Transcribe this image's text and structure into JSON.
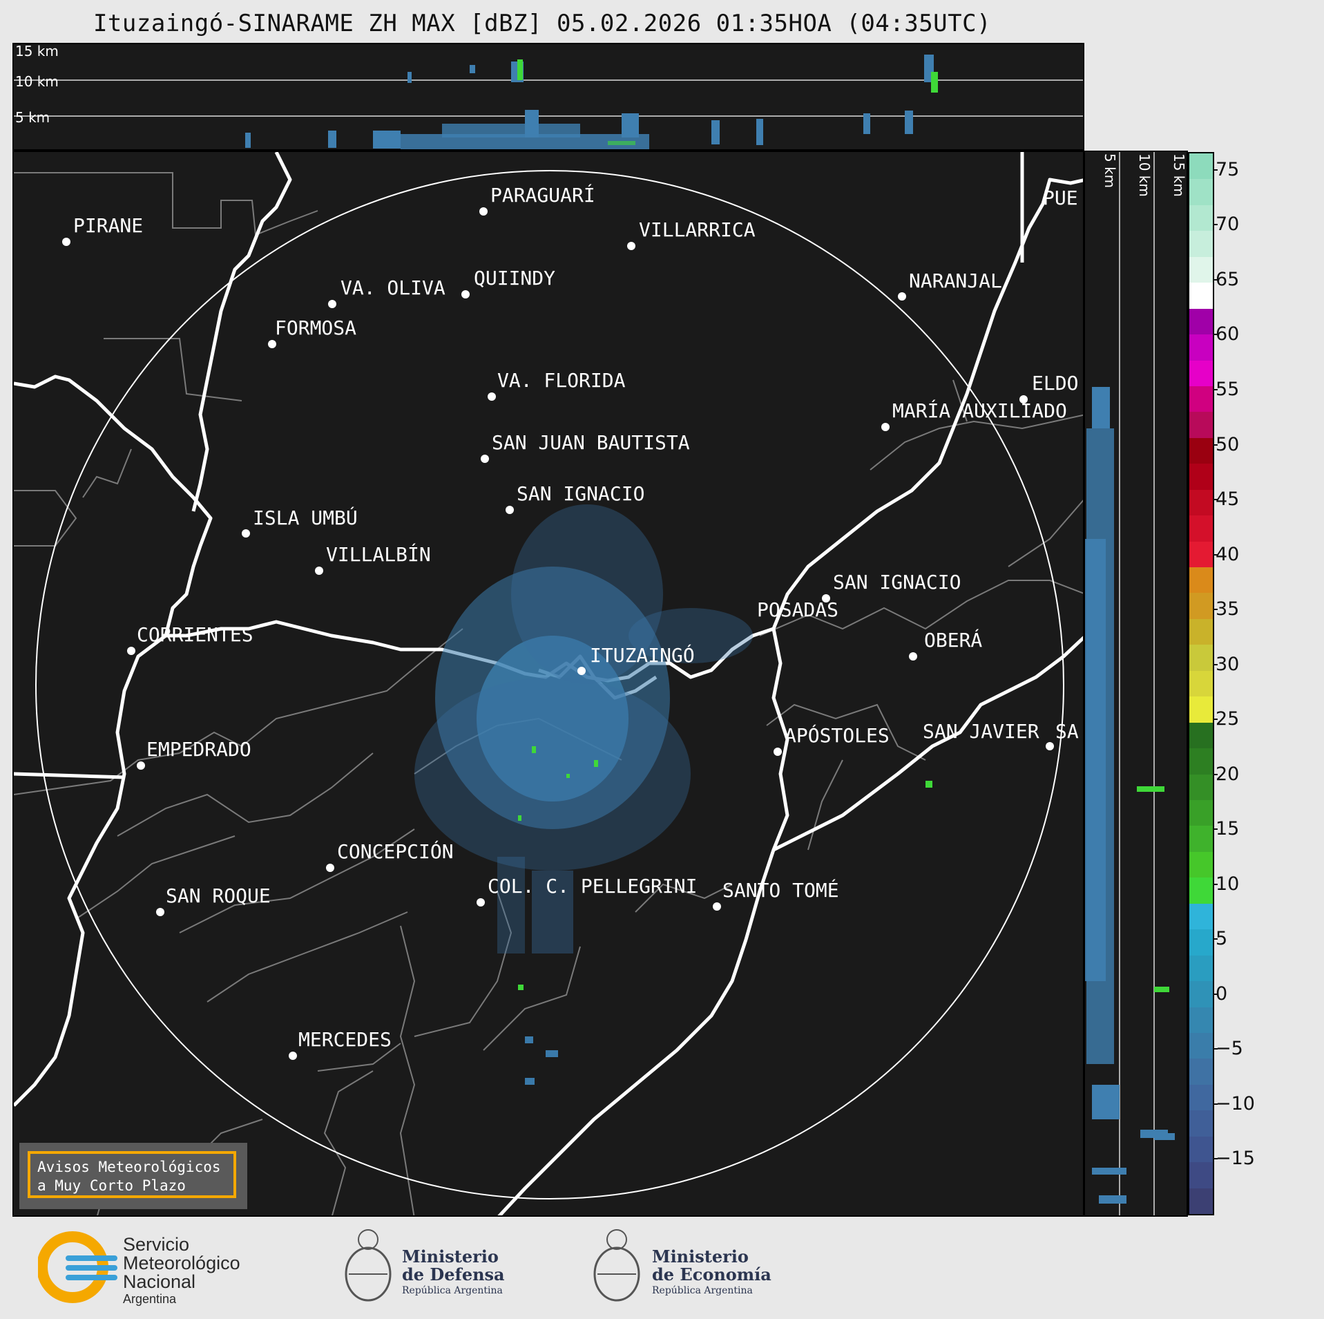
{
  "title": "Ituzaingó-SINARAME ZH MAX [dBZ] 05.02.2026 01:35HOA (04:35UTC)",
  "top_panel": {
    "labels": [
      "15 km",
      "10 km",
      "5 km"
    ]
  },
  "side_panel": {
    "labels": [
      "5 km",
      "10 km",
      "15 km"
    ]
  },
  "colorbar": {
    "ticks": [
      "75",
      "70",
      "65",
      "60",
      "55",
      "50",
      "45",
      "40",
      "35",
      "30",
      "25",
      "20",
      "15",
      "10",
      "5",
      "0",
      "−5",
      "−10",
      "−15"
    ],
    "min": -20,
    "max": 76.5,
    "colors": [
      "#3c4073",
      "#3e4a84",
      "#3f5590",
      "#405f98",
      "#40689f",
      "#3f72a4",
      "#3a7daa",
      "#3587b0",
      "#2f92b7",
      "#2a9dc0",
      "#27a8cb",
      "#2fb4da",
      "#3fd838",
      "#46c72a",
      "#3fb22c",
      "#39a028",
      "#348f26",
      "#2d7f22",
      "#277020",
      "#e8ea3a",
      "#d8d63a",
      "#c9c93a",
      "#c9b22a",
      "#d19a22",
      "#da8a1a",
      "#e41a32",
      "#d4102a",
      "#c30a22",
      "#b00018",
      "#9a0010",
      "#b80a5a",
      "#d00080",
      "#e600c8",
      "#c800c0",
      "#a000a8",
      "#ffffff",
      "#e0f5ea",
      "#c7eedc",
      "#b2e8d0",
      "#9fe2c6",
      "#8ddbbc"
    ]
  },
  "cities": [
    {
      "name": "PARAGUARÍ"
    },
    {
      "name": "PIRANE"
    },
    {
      "name": "VILLARRICA"
    },
    {
      "name": "QUIINDY"
    },
    {
      "name": "VA. OLIVA"
    },
    {
      "name": "NARANJAL"
    },
    {
      "name": "FORMOSA"
    },
    {
      "name": "PUE"
    },
    {
      "name": "VA. FLORIDA"
    },
    {
      "name": "ELDO"
    },
    {
      "name": "MARÍA AUXILIADO"
    },
    {
      "name": "SAN JUAN BAUTISTA"
    },
    {
      "name": "SAN IGNACIO"
    },
    {
      "name": "ISLA UMBÚ"
    },
    {
      "name": "VILLALBÍN"
    },
    {
      "name": "SAN IGNACIO"
    },
    {
      "name": "POSADAS"
    },
    {
      "name": "CORRIENTES"
    },
    {
      "name": "ITUZAINGÓ"
    },
    {
      "name": "OBERÁ"
    },
    {
      "name": "APÓSTOLES"
    },
    {
      "name": "SAN JAVIER"
    },
    {
      "name": "SA"
    },
    {
      "name": "EMPEDRADO"
    },
    {
      "name": "CONCEPCIÓN"
    },
    {
      "name": "COL. C. PELLEGRINI"
    },
    {
      "name": "SANTO TOMÉ"
    },
    {
      "name": "SAN ROQUE"
    },
    {
      "name": "MERCEDES"
    }
  ],
  "warning": {
    "line1": "Avisos Meteorológicos",
    "line2": "a Muy Corto Plazo"
  },
  "footer": {
    "smn": {
      "l1": "Servicio",
      "l2": "Meteorológico",
      "l3": "Nacional",
      "l4": "Argentina"
    },
    "defensa": {
      "l1": "Ministerio",
      "l2": "de Defensa",
      "l3": "República Argentina"
    },
    "economia": {
      "l1": "Ministerio",
      "l2": "de Economía",
      "l3": "República Argentina"
    }
  }
}
